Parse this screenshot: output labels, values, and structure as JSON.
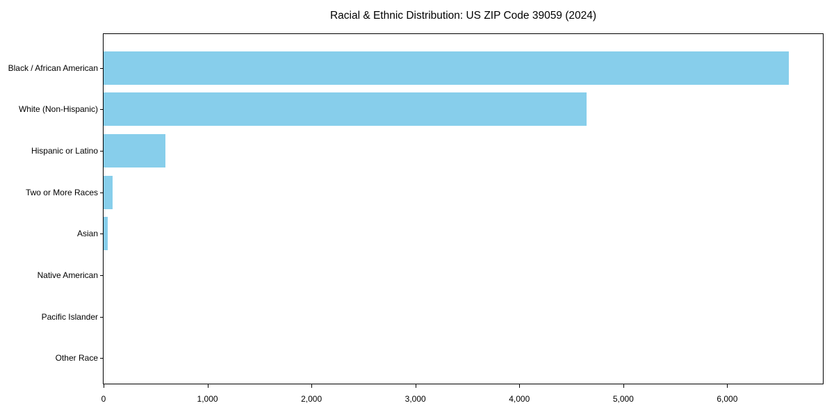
{
  "chart_data": {
    "type": "bar",
    "orientation": "horizontal",
    "title": "Racial & Ethnic Distribution: US ZIP Code 39059 (2024)",
    "categories": [
      "Black / African American",
      "White (Non-Hispanic)",
      "Hispanic or Latino",
      "Two or More Races",
      "Asian",
      "Native American",
      "Pacific Islander",
      "Other Race"
    ],
    "values": [
      6590,
      4650,
      593,
      87,
      39,
      0,
      0,
      0
    ],
    "xlabel": "",
    "ylabel": "",
    "xlim": [
      0,
      6920
    ],
    "x_ticks": [
      0,
      1000,
      2000,
      3000,
      4000,
      5000,
      6000
    ],
    "x_tick_labels": [
      "0",
      "1,000",
      "2,000",
      "3,000",
      "4,000",
      "5,000",
      "6,000"
    ],
    "bar_color": "#87CEEB",
    "text_color": "#000000",
    "axis_color": "#000000",
    "background_color": "#ffffff",
    "grid": false,
    "legend": null
  }
}
